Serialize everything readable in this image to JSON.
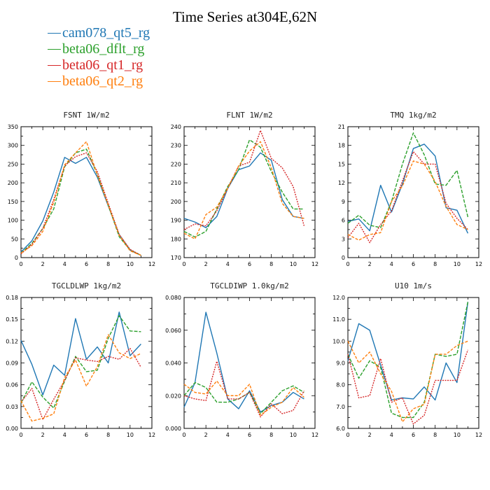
{
  "title": "Time Series at304E,62N",
  "legend": [
    {
      "name": "cam078_qt5_rg",
      "color": "#1f77b4"
    },
    {
      "name": "beta06_dflt_rg",
      "color": "#2ca02c"
    },
    {
      "name": "beta06_qt1_rg",
      "color": "#d62728"
    },
    {
      "name": "beta06_qt2_rg",
      "color": "#ff7f0e"
    }
  ],
  "chart_data": [
    {
      "type": "line",
      "title": "FSNT   1W/m2",
      "x": [
        0,
        1,
        2,
        3,
        4,
        5,
        6,
        7,
        8,
        9,
        10,
        11
      ],
      "xlim": [
        0,
        12
      ],
      "xticks": [
        "0",
        "2",
        "4",
        "6",
        "8",
        "10",
        "12"
      ],
      "ylim": [
        0,
        350
      ],
      "yticks": [
        "0",
        "50",
        "100",
        "150",
        "200",
        "250",
        "300",
        "350"
      ],
      "series": [
        {
          "name": "cam078_qt5_rg",
          "values": [
            15,
            45,
            98,
            175,
            268,
            252,
            268,
            215,
            138,
            62,
            20,
            6
          ]
        },
        {
          "name": "beta06_dflt_rg",
          "values": [
            12,
            38,
            78,
            130,
            243,
            280,
            290,
            222,
            140,
            56,
            20,
            6
          ]
        },
        {
          "name": "beta06_qt1_rg",
          "values": [
            10,
            35,
            78,
            155,
            245,
            270,
            280,
            230,
            145,
            62,
            22,
            6
          ]
        },
        {
          "name": "beta06_qt2_rg",
          "values": [
            12,
            32,
            70,
            148,
            248,
            280,
            310,
            220,
            140,
            60,
            18,
            6
          ]
        }
      ]
    },
    {
      "type": "line",
      "title": "FLNT   1W/m2",
      "x": [
        0,
        1,
        2,
        3,
        4,
        5,
        6,
        7,
        8,
        9,
        10,
        11
      ],
      "xlim": [
        0,
        12
      ],
      "xticks": [
        "0",
        "2",
        "4",
        "6",
        "8",
        "10",
        "12"
      ],
      "ylim": [
        170,
        240
      ],
      "yticks": [
        "170",
        "180",
        "190",
        "200",
        "210",
        "220",
        "230",
        "240"
      ],
      "series": [
        {
          "name": "cam078_qt5_rg",
          "values": [
            191,
            189,
            186,
            192,
            207,
            217,
            219,
            226,
            222,
            201,
            192,
            191
          ]
        },
        {
          "name": "beta06_dflt_rg",
          "values": [
            184,
            181,
            184,
            196,
            208,
            217,
            233,
            229,
            216,
            205,
            196,
            196
          ]
        },
        {
          "name": "beta06_qt1_rg",
          "values": [
            185,
            188,
            187,
            195,
            207,
            219,
            221,
            238,
            223,
            218,
            208,
            187
          ]
        },
        {
          "name": "beta06_qt2_rg",
          "values": [
            183,
            180,
            193,
            197,
            207,
            219,
            227,
            232,
            218,
            199,
            192,
            191
          ]
        }
      ]
    },
    {
      "type": "line",
      "title": "TMQ   1kg/m2",
      "x": [
        0,
        1,
        2,
        3,
        4,
        5,
        6,
        7,
        8,
        9,
        10,
        11
      ],
      "xlim": [
        0,
        12
      ],
      "xticks": [
        "0",
        "2",
        "4",
        "6",
        "8",
        "10",
        "12"
      ],
      "ylim": [
        0,
        21
      ],
      "yticks": [
        "0",
        "3",
        "6",
        "9",
        "12",
        "15",
        "18",
        "21"
      ],
      "series": [
        {
          "name": "cam078_qt5_rg",
          "values": [
            5.8,
            6.2,
            4.3,
            11.6,
            7.3,
            11.8,
            17.5,
            18.2,
            16.3,
            8.0,
            7.6,
            3.9
          ]
        },
        {
          "name": "beta06_dflt_rg",
          "values": [
            5.5,
            6.8,
            5.2,
            4.8,
            9.0,
            15.0,
            20.0,
            16.5,
            11.8,
            11.6,
            14.0,
            6.5
          ]
        },
        {
          "name": "beta06_qt1_rg",
          "values": [
            3.2,
            5.5,
            2.4,
            5.3,
            7.5,
            12.3,
            17.0,
            15.0,
            15.0,
            8.7,
            6.3,
            4.5
          ]
        },
        {
          "name": "beta06_qt2_rg",
          "values": [
            3.7,
            2.8,
            3.7,
            4.0,
            9.0,
            11.5,
            15.5,
            15.0,
            12.2,
            8.2,
            5.3,
            4.5
          ]
        }
      ]
    },
    {
      "type": "line",
      "title": "TGCLDLWP   1kg/m2",
      "x": [
        0,
        1,
        2,
        3,
        4,
        5,
        6,
        7,
        8,
        9,
        10,
        11
      ],
      "xlim": [
        0,
        12
      ],
      "xticks": [
        "0",
        "2",
        "4",
        "6",
        "8",
        "10",
        "12"
      ],
      "ylim": [
        0,
        0.18
      ],
      "yticks": [
        "0.00",
        "0.03",
        "0.06",
        "0.09",
        "0.12",
        "0.15",
        "0.18"
      ],
      "series": [
        {
          "name": "cam078_qt5_rg",
          "values": [
            0.121,
            0.088,
            0.046,
            0.087,
            0.073,
            0.151,
            0.095,
            0.112,
            0.09,
            0.16,
            0.1,
            0.116
          ]
        },
        {
          "name": "beta06_dflt_rg",
          "values": [
            0.035,
            0.064,
            0.043,
            0.028,
            0.065,
            0.099,
            0.078,
            0.08,
            0.124,
            0.155,
            0.134,
            0.133
          ]
        },
        {
          "name": "beta06_qt1_rg",
          "values": [
            0.036,
            0.055,
            0.012,
            0.04,
            0.066,
            0.097,
            0.094,
            0.092,
            0.099,
            0.095,
            0.11,
            0.084
          ]
        },
        {
          "name": "beta06_qt2_rg",
          "values": [
            0.038,
            0.01,
            0.014,
            0.02,
            0.07,
            0.094,
            0.058,
            0.085,
            0.129,
            0.104,
            0.096,
            0.103
          ]
        }
      ]
    },
    {
      "type": "line",
      "title": "TGCLDIWP   1.0kg/m2",
      "x": [
        0,
        1,
        2,
        3,
        4,
        5,
        6,
        7,
        8,
        9,
        10,
        11
      ],
      "xlim": [
        0,
        12
      ],
      "xticks": [
        "0",
        "2",
        "4",
        "6",
        "8",
        "10",
        "12"
      ],
      "ylim": [
        0,
        0.08
      ],
      "yticks": [
        "0.000",
        "0.020",
        "0.040",
        "0.060",
        "0.080"
      ],
      "series": [
        {
          "name": "cam078_qt5_rg",
          "values": [
            0.013,
            0.028,
            0.071,
            0.046,
            0.018,
            0.012,
            0.023,
            0.01,
            0.014,
            0.016,
            0.022,
            0.018
          ]
        },
        {
          "name": "beta06_dflt_rg",
          "values": [
            0.02,
            0.028,
            0.025,
            0.016,
            0.016,
            0.018,
            0.022,
            0.009,
            0.016,
            0.023,
            0.026,
            0.022
          ]
        },
        {
          "name": "beta06_qt1_rg",
          "values": [
            0.02,
            0.018,
            0.017,
            0.041,
            0.018,
            0.018,
            0.022,
            0.007,
            0.015,
            0.009,
            0.011,
            0.023
          ]
        },
        {
          "name": "beta06_qt2_rg",
          "values": [
            0.027,
            0.022,
            0.021,
            0.029,
            0.02,
            0.02,
            0.027,
            0.008,
            0.013,
            0.016,
            0.025,
            0.019
          ]
        }
      ]
    },
    {
      "type": "line",
      "title": "U10   1m/s",
      "x": [
        0,
        1,
        2,
        3,
        4,
        5,
        6,
        7,
        8,
        9,
        10,
        11
      ],
      "xlim": [
        0,
        12
      ],
      "xticks": [
        "0",
        "2",
        "4",
        "6",
        "8",
        "10",
        "12"
      ],
      "ylim": [
        6.0,
        12.0
      ],
      "yticks": [
        "6.0",
        "7.0",
        "8.0",
        "9.0",
        "10.0",
        "11.0",
        "12.0"
      ],
      "series": [
        {
          "name": "cam078_qt5_rg",
          "values": [
            9.1,
            10.8,
            10.5,
            8.9,
            7.3,
            7.4,
            7.35,
            7.9,
            7.3,
            9.0,
            8.1,
            11.8
          ]
        },
        {
          "name": "beta06_dflt_rg",
          "values": [
            9.4,
            8.3,
            9.1,
            8.8,
            6.7,
            6.5,
            6.5,
            7.2,
            9.4,
            9.3,
            9.4,
            11.8
          ]
        },
        {
          "name": "beta06_qt1_rg",
          "values": [
            9.4,
            7.4,
            7.5,
            9.2,
            7.2,
            7.4,
            6.2,
            6.6,
            8.2,
            8.2,
            8.2,
            9.6
          ]
        },
        {
          "name": "beta06_qt2_rg",
          "values": [
            10.0,
            9.0,
            9.5,
            8.5,
            7.7,
            6.3,
            6.9,
            7.1,
            9.4,
            9.4,
            9.8,
            10.0
          ]
        }
      ]
    }
  ]
}
